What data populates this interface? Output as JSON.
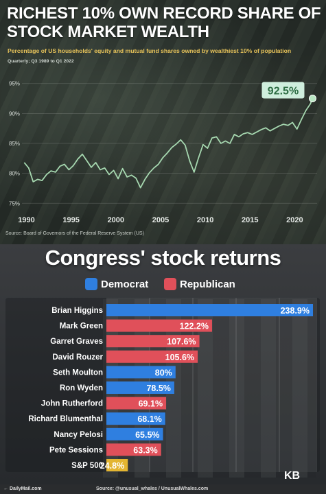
{
  "top_chart": {
    "title_line1": "RICHEST 10% OWN RECORD SHARE OF",
    "title_line2": "STOCK MARKET WEALTH",
    "subtitle": "Percentage of US households' equity and mutual fund shares owned by wealthiest 10% of population",
    "period": "Quarterly; Q3 1989 to Q1 2022",
    "source": "Source: Board of Governors of the Federal Reserve System (US)",
    "highlight_label": "92.5%"
  },
  "bottom_chart": {
    "title": "Congress' stock returns",
    "legend": [
      {
        "label": "Democrat",
        "color": "#2f7fe0"
      },
      {
        "label": "Republican",
        "color": "#e0505a"
      }
    ],
    "watermark": "KB"
  },
  "footer": {
    "brand": "← DailyMail.com",
    "source": "Source: @unusual_whales / UnusualWhales.com"
  },
  "chart_data": [
    {
      "type": "line",
      "title": "RICHEST 10% OWN RECORD SHARE OF STOCK MARKET WEALTH",
      "ylim": [
        74,
        96
      ],
      "xlim": [
        1989.5,
        2022.5
      ],
      "yticks": [
        "75%",
        "80%",
        "85%",
        "90%",
        "95%"
      ],
      "ytick_values": [
        75,
        80,
        85,
        90,
        95
      ],
      "xticks": [
        "1990",
        "1995",
        "2000",
        "2005",
        "2010",
        "2015",
        "2020"
      ],
      "xtick_values": [
        1990,
        1995,
        2000,
        2005,
        2010,
        2015,
        2020
      ],
      "grid": true,
      "series": [
        {
          "color": "#a6d8b0",
          "x": [
            1989.75,
            1990.25,
            1990.75,
            1991.25,
            1991.75,
            1992.25,
            1992.75,
            1993.25,
            1993.75,
            1994.25,
            1994.75,
            1995.25,
            1995.75,
            1996.25,
            1996.75,
            1997.25,
            1997.75,
            1998.25,
            1998.75,
            1999.25,
            1999.75,
            2000.25,
            2000.75,
            2001.25,
            2001.75,
            2002.25,
            2002.75,
            2003.25,
            2003.75,
            2004.25,
            2004.75,
            2005.25,
            2005.75,
            2006.25,
            2006.75,
            2007.25,
            2007.75,
            2008.25,
            2008.75,
            2009.25,
            2009.75,
            2010.25,
            2010.75,
            2011.25,
            2011.75,
            2012.25,
            2012.75,
            2013.25,
            2013.75,
            2014.25,
            2014.75,
            2015.25,
            2015.75,
            2016.25,
            2016.75,
            2017.25,
            2017.75,
            2018.25,
            2018.75,
            2019.25,
            2019.75,
            2020.25,
            2020.75,
            2021.25,
            2021.75,
            2022.0
          ],
          "y": [
            81.8,
            80.9,
            78.6,
            79.0,
            78.8,
            79.8,
            80.4,
            80.2,
            81.2,
            81.5,
            80.6,
            81.3,
            82.4,
            83.2,
            82.1,
            81.0,
            81.8,
            80.6,
            80.9,
            79.8,
            80.5,
            79.1,
            80.8,
            79.4,
            79.7,
            79.2,
            77.6,
            79.0,
            80.1,
            80.9,
            81.5,
            82.6,
            83.4,
            84.3,
            84.9,
            85.6,
            84.7,
            82.1,
            80.2,
            82.6,
            84.8,
            84.2,
            85.9,
            86.1,
            85.0,
            85.4,
            85.0,
            86.5,
            86.1,
            86.6,
            86.8,
            86.5,
            86.9,
            87.3,
            87.6,
            87.1,
            87.5,
            87.9,
            88.2,
            88.0,
            88.5,
            87.4,
            89.0,
            90.5,
            91.6,
            92.5
          ]
        }
      ],
      "annotations": [
        {
          "text": "92.5%",
          "x": 2022.0,
          "y": 92.5
        }
      ]
    },
    {
      "type": "bar",
      "title": "Congress' stock returns",
      "orientation": "horizontal",
      "categories": [
        "Brian Higgins",
        "Mark Green",
        "Garret Graves",
        "David Rouzer",
        "Seth Moulton",
        "Ron Wyden",
        "John Rutherford",
        "Richard Blumenthal",
        "Nancy Pelosi",
        "Pete Sessions",
        "S&P 500"
      ],
      "values": [
        238.9,
        122.2,
        107.6,
        105.6,
        80,
        78.5,
        69.1,
        68.1,
        65.5,
        63.3,
        24.8
      ],
      "value_labels": [
        "238.9%",
        "122.2%",
        "107.6%",
        "105.6%",
        "80%",
        "78.5%",
        "69.1%",
        "68.1%",
        "65.5%",
        "63.3%",
        "24.8%"
      ],
      "party": [
        "Democrat",
        "Republican",
        "Republican",
        "Republican",
        "Democrat",
        "Democrat",
        "Republican",
        "Democrat",
        "Democrat",
        "Republican",
        "Index"
      ],
      "colors": [
        "#2f7fe0",
        "#e0505a",
        "#e0505a",
        "#e0505a",
        "#2f7fe0",
        "#2f7fe0",
        "#e0505a",
        "#2f7fe0",
        "#2f7fe0",
        "#e0505a",
        "#e3b531"
      ],
      "xlim": [
        0,
        250
      ],
      "legend_position": "top",
      "grid": true
    }
  ]
}
